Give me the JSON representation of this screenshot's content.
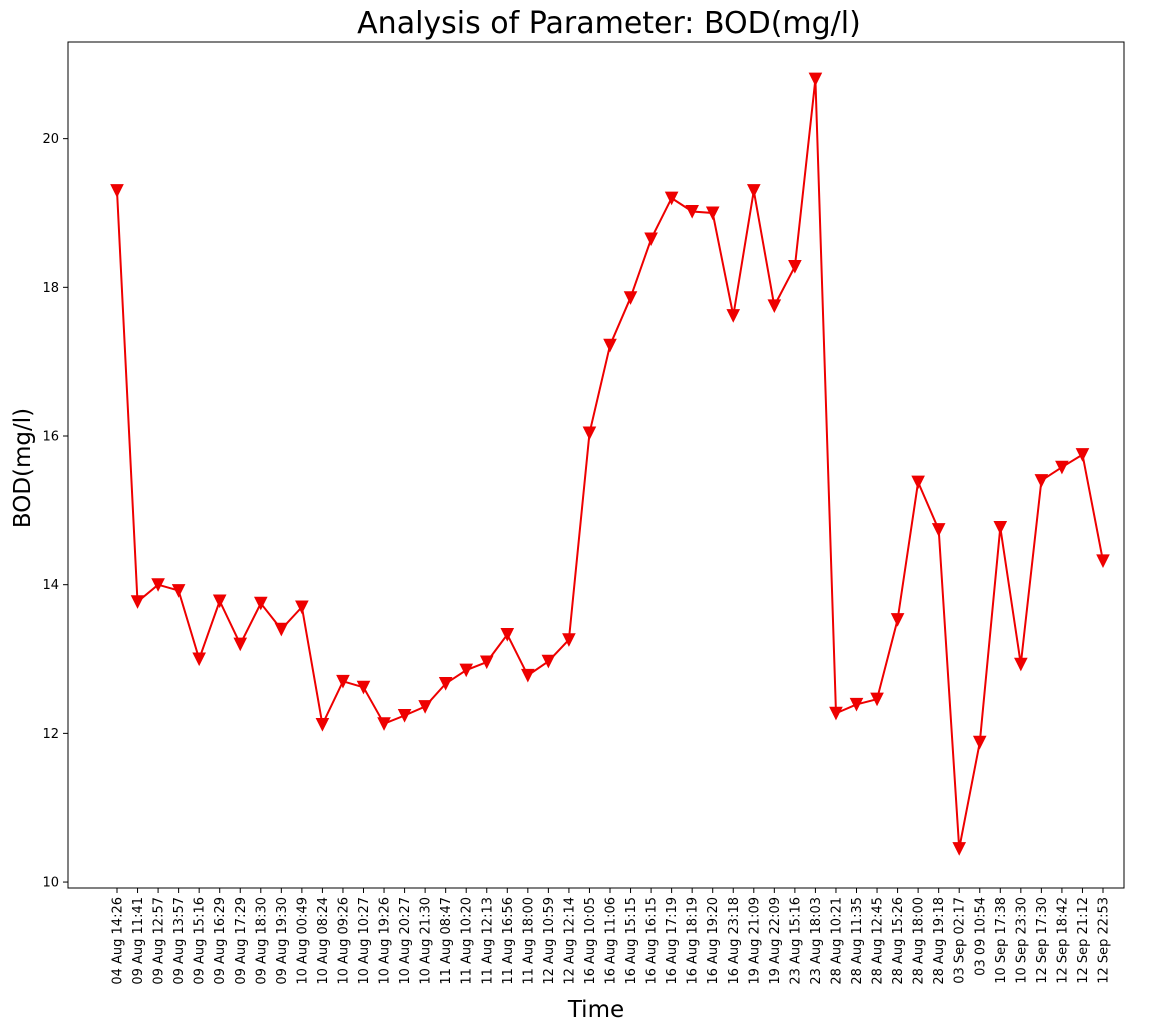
{
  "chart_data": {
    "type": "line",
    "title": "Analysis of Parameter: BOD(mg/l)",
    "xlabel": "Time",
    "ylabel": "BOD(mg/l)",
    "ylim": [
      9.92,
      21.3
    ],
    "yticks": [
      10,
      12,
      14,
      16,
      18,
      20
    ],
    "grid": false,
    "marker": "triangle-down",
    "color": "#ee0000",
    "categories": [
      "04 Aug 14:26",
      "09 Aug 11:41",
      "09 Aug 12:57",
      "09 Aug 13:57",
      "09 Aug 15:16",
      "09 Aug 16:29",
      "09 Aug 17:29",
      "09 Aug 18:30",
      "09 Aug 19:30",
      "10 Aug 00:49",
      "10 Aug 08:24",
      "10 Aug 09:26",
      "10 Aug 10:27",
      "10 Aug 19:26",
      "10 Aug 20:27",
      "10 Aug 21:30",
      "11 Aug 08:47",
      "11 Aug 10:20",
      "11 Aug 12:13",
      "11 Aug 16:56",
      "11 Aug 18:00",
      "12 Aug 10:59",
      "12 Aug 12:14",
      "16 Aug 10:05",
      "16 Aug 11:06",
      "16 Aug 15:15",
      "16 Aug 16:15",
      "16 Aug 17:19",
      "16 Aug 18:19",
      "16 Aug 19:20",
      "16 Aug 23:18",
      "19 Aug 21:09",
      "19 Aug 22:09",
      "23 Aug 15:16",
      "23 Aug 18:03",
      "28 Aug 10:21",
      "28 Aug 11:35",
      "28 Aug 12:45",
      "28 Aug 15:26",
      "28 Aug 18:00",
      "28 Aug 19:18",
      "03 Sep 02:17",
      "03 09 10:54",
      "10 Sep 17:38",
      "10 Sep 23:30",
      "12 Sep 17:30",
      "12 Sep 18:42",
      "12 Sep 21:12",
      "12 Sep 22:53"
    ],
    "values": [
      19.3,
      13.77,
      14.0,
      13.92,
      13.0,
      13.78,
      13.2,
      13.75,
      13.4,
      13.7,
      12.12,
      12.7,
      12.62,
      12.13,
      12.24,
      12.36,
      12.67,
      12.85,
      12.96,
      13.33,
      12.78,
      12.97,
      13.26,
      16.04,
      17.22,
      17.86,
      18.65,
      19.2,
      19.02,
      19.0,
      17.62,
      19.3,
      17.75,
      18.28,
      20.8,
      12.27,
      12.39,
      12.46,
      13.53,
      15.38,
      14.74,
      10.45,
      11.88,
      14.77,
      12.93,
      15.4,
      15.58,
      15.75,
      14.32
    ]
  }
}
